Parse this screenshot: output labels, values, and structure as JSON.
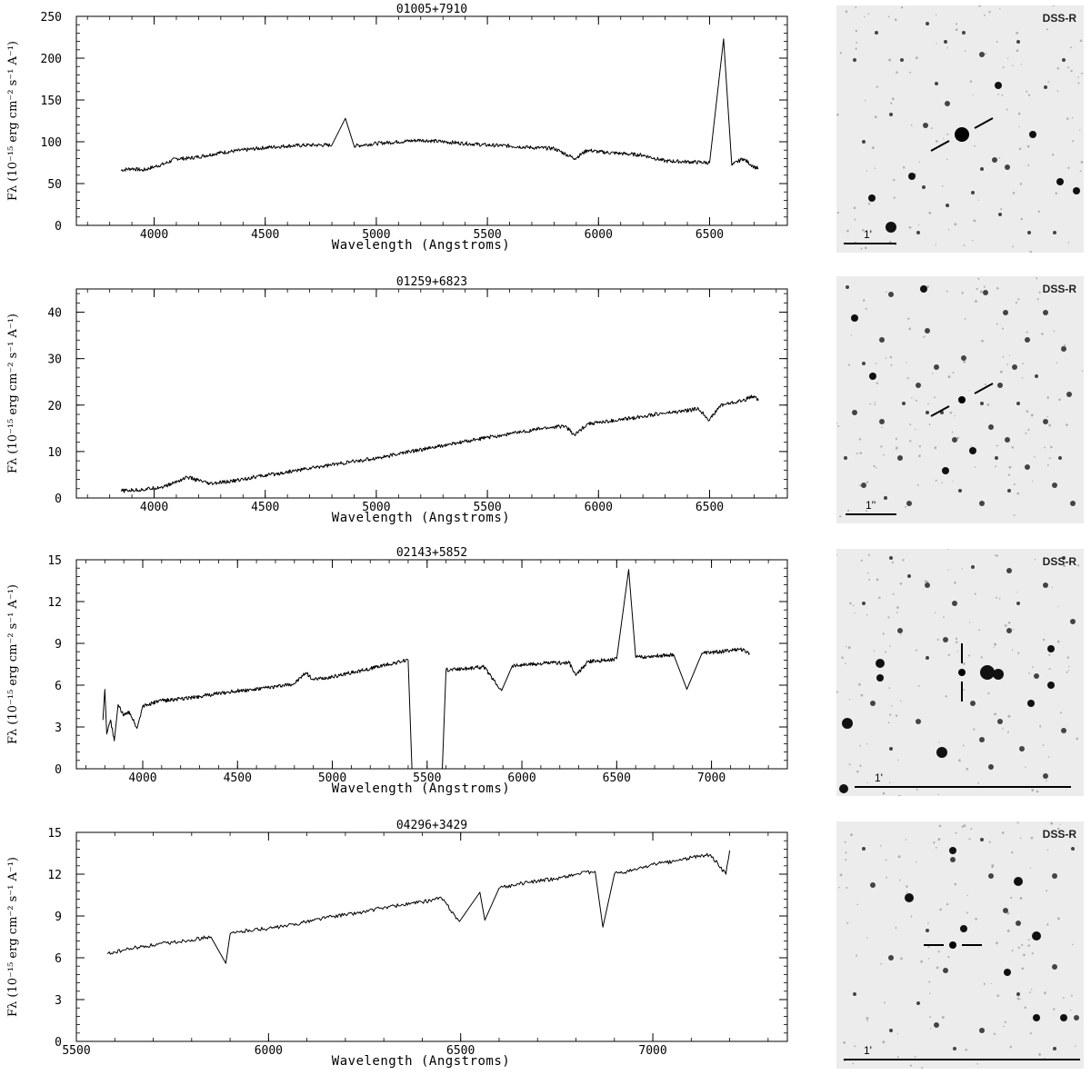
{
  "chart_data": [
    {
      "type": "line",
      "title": "01005+7910",
      "xlabel": "Wavelength (Angstroms)",
      "ylabel": "Fλ (10⁻¹⁵ erg cm⁻² s⁻¹ A⁻¹)",
      "xlim": [
        3650,
        6850
      ],
      "ylim": [
        0,
        250
      ],
      "xticks": [
        4000,
        4500,
        5000,
        5500,
        6000,
        6500
      ],
      "yticks": [
        0,
        50,
        100,
        150,
        200,
        250
      ],
      "series": [
        {
          "x": [
            3850,
            3900,
            3950,
            4000,
            4050,
            4100,
            4150,
            4200,
            4300,
            4400,
            4500,
            4600,
            4700,
            4800,
            4861,
            4900,
            5000,
            5100,
            5200,
            5300,
            5400,
            5500,
            5600,
            5700,
            5800,
            5893,
            5950,
            6000,
            6100,
            6200,
            6300,
            6400,
            6500,
            6563,
            6600,
            6650,
            6700,
            6720
          ],
          "y": [
            66,
            68,
            66,
            70,
            74,
            80,
            80,
            82,
            87,
            90,
            93,
            95,
            96,
            96,
            128,
            95,
            98,
            100,
            102,
            100,
            98,
            96,
            95,
            93,
            92,
            80,
            90,
            88,
            86,
            84,
            77,
            76,
            75,
            223,
            72,
            80,
            70,
            68
          ]
        }
      ],
      "dss_label": "DSS-R",
      "scale_label": "1'"
    },
    {
      "type": "line",
      "title": "01259+6823",
      "xlabel": "Wavelength (Angstroms)",
      "ylabel": "Fλ (10⁻¹⁵ erg cm⁻² s⁻¹ A⁻¹)",
      "xlim": [
        3650,
        6850
      ],
      "ylim": [
        0,
        45
      ],
      "xticks": [
        4000,
        4500,
        5000,
        5500,
        6000,
        6500
      ],
      "yticks": [
        0,
        10,
        20,
        30,
        40
      ],
      "series": [
        {
          "x": [
            3850,
            3950,
            4050,
            4150,
            4250,
            4350,
            4450,
            4550,
            4650,
            4750,
            4850,
            4950,
            5050,
            5150,
            5250,
            5350,
            5450,
            5550,
            5650,
            5750,
            5850,
            5893,
            5950,
            6050,
            6150,
            6250,
            6350,
            6450,
            6500,
            6550,
            6650,
            6700,
            6720
          ],
          "y": [
            1.5,
            1.8,
            2.5,
            4.5,
            3.0,
            3.6,
            4.5,
            5.2,
            6.0,
            6.8,
            7.5,
            8.2,
            9.0,
            10.0,
            10.8,
            11.7,
            12.6,
            13.4,
            14.2,
            15.0,
            15.5,
            13.5,
            16.0,
            16.5,
            17.2,
            18.0,
            18.5,
            19.2,
            16.8,
            20.0,
            21.0,
            22.0,
            21.0
          ]
        }
      ],
      "dss_label": "DSS-R",
      "scale_label": "1''"
    },
    {
      "type": "line",
      "title": "02143+5852",
      "xlabel": "Wavelength (Angstroms)",
      "ylabel": "Fλ (10⁻¹⁵ erg cm⁻² s⁻¹ A⁻¹)",
      "xlim": [
        3650,
        7400
      ],
      "ylim": [
        0,
        15
      ],
      "xticks": [
        4000,
        4500,
        5000,
        5500,
        6000,
        6500,
        7000
      ],
      "yticks": [
        0,
        3,
        6,
        9,
        12,
        15
      ],
      "series": [
        {
          "x": [
            3790,
            3800,
            3810,
            3830,
            3850,
            3870,
            3900,
            3930,
            3970,
            4000,
            4100,
            4200,
            4300,
            4400,
            4500,
            4600,
            4700,
            4800,
            4861,
            4900,
            5000,
            5100,
            5200,
            5300,
            5400,
            5420,
            5580,
            5600,
            5700,
            5800,
            5893,
            5950,
            6050,
            6150,
            6250,
            6284,
            6350,
            6450,
            6500,
            6563,
            6600,
            6700,
            6800,
            6870,
            6950,
            7050,
            7150,
            7200
          ],
          "y": [
            3.5,
            5.7,
            2.5,
            3.5,
            2.0,
            4.6,
            3.8,
            4.1,
            2.9,
            4.5,
            4.9,
            5.0,
            5.2,
            5.4,
            5.6,
            5.7,
            5.9,
            6.1,
            6.9,
            6.4,
            6.6,
            6.9,
            7.2,
            7.5,
            7.8,
            0,
            0,
            7.1,
            7.2,
            7.3,
            5.6,
            7.4,
            7.5,
            7.6,
            7.6,
            6.7,
            7.7,
            7.8,
            7.9,
            14.3,
            8.0,
            8.1,
            8.2,
            5.7,
            8.3,
            8.4,
            8.6,
            8.3
          ]
        }
      ],
      "dss_label": "DSS-R",
      "scale_label": "1'"
    },
    {
      "type": "line",
      "title": "04296+3429",
      "xlabel": "Wavelength (Angstroms)",
      "ylabel": "Fλ (10⁻¹⁵ erg cm⁻² s⁻¹ A⁻¹)",
      "xlim": [
        5500,
        7350
      ],
      "ylim": [
        0,
        15
      ],
      "xticks": [
        5500,
        6000,
        6500,
        7000
      ],
      "yticks": [
        0,
        3,
        6,
        9,
        12,
        15
      ],
      "series": [
        {
          "x": [
            5580,
            5600,
            5650,
            5700,
            5750,
            5800,
            5850,
            5889,
            5900,
            5950,
            6000,
            6050,
            6100,
            6150,
            6200,
            6250,
            6300,
            6350,
            6400,
            6450,
            6497,
            6550,
            6563,
            6600,
            6650,
            6700,
            6750,
            6800,
            6850,
            6870,
            6900,
            6950,
            7000,
            7050,
            7100,
            7150,
            7190,
            7200
          ],
          "y": [
            6.3,
            6.4,
            6.7,
            6.9,
            7.1,
            7.3,
            7.5,
            5.6,
            7.7,
            8.0,
            8.1,
            8.3,
            8.6,
            8.9,
            9.1,
            9.3,
            9.6,
            9.8,
            10.0,
            10.3,
            8.6,
            10.7,
            8.7,
            11.0,
            11.3,
            11.5,
            11.7,
            12.0,
            12.2,
            8.2,
            12.0,
            12.3,
            12.7,
            12.9,
            13.2,
            13.4,
            12.0,
            13.7
          ]
        }
      ],
      "dss_label": "DSS-R",
      "scale_label": "1'"
    }
  ]
}
